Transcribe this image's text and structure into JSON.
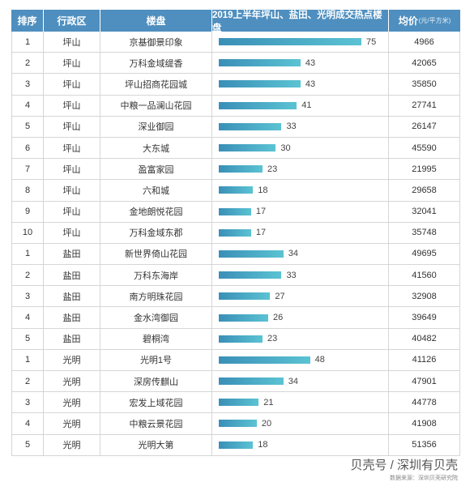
{
  "header": {
    "rank": "排序",
    "district": "行政区",
    "project": "楼盘",
    "chart_title": "2019上半年坪山、盐田、光明成交热点楼盘",
    "price": "均价",
    "price_unit": "(元/平方米)"
  },
  "chart_data": {
    "type": "table",
    "title": "2019上半年坪山、盐田、光明成交热点楼盘",
    "columns": [
      "排序",
      "行政区",
      "楼盘",
      "2019上半年坪山、盐田、光明成交热点楼盘",
      "均价(元/平方米)"
    ],
    "bar_max": 75,
    "rows": [
      {
        "rank": "1",
        "district": "坪山",
        "project": "京基御景印象",
        "value": 75,
        "price": "4966"
      },
      {
        "rank": "2",
        "district": "坪山",
        "project": "万科金域缇香",
        "value": 43,
        "price": "42065"
      },
      {
        "rank": "3",
        "district": "坪山",
        "project": "坪山招商花园城",
        "value": 43,
        "price": "35850"
      },
      {
        "rank": "4",
        "district": "坪山",
        "project": "中粮一品澜山花园",
        "value": 41,
        "price": "27741"
      },
      {
        "rank": "5",
        "district": "坪山",
        "project": "深业御园",
        "value": 33,
        "price": "26147"
      },
      {
        "rank": "6",
        "district": "坪山",
        "project": "大东城",
        "value": 30,
        "price": "45590"
      },
      {
        "rank": "7",
        "district": "坪山",
        "project": "盈富家园",
        "value": 23,
        "price": "21995"
      },
      {
        "rank": "8",
        "district": "坪山",
        "project": "六和城",
        "value": 18,
        "price": "29658"
      },
      {
        "rank": "9",
        "district": "坪山",
        "project": "金地朗悦花园",
        "value": 17,
        "price": "32041"
      },
      {
        "rank": "10",
        "district": "坪山",
        "project": "万科金域东郡",
        "value": 17,
        "price": "35748"
      },
      {
        "rank": "1",
        "district": "盐田",
        "project": "新世界倚山花园",
        "value": 34,
        "price": "49695"
      },
      {
        "rank": "2",
        "district": "盐田",
        "project": "万科东海岸",
        "value": 33,
        "price": "41560"
      },
      {
        "rank": "3",
        "district": "盐田",
        "project": "南方明珠花园",
        "value": 27,
        "price": "32908"
      },
      {
        "rank": "4",
        "district": "盐田",
        "project": "金水湾御园",
        "value": 26,
        "price": "39649"
      },
      {
        "rank": "5",
        "district": "盐田",
        "project": "碧桐湾",
        "value": 23,
        "price": "40482"
      },
      {
        "rank": "1",
        "district": "光明",
        "project": "光明1号",
        "value": 48,
        "price": "41126"
      },
      {
        "rank": "2",
        "district": "光明",
        "project": "深房传麒山",
        "value": 34,
        "price": "47901"
      },
      {
        "rank": "3",
        "district": "光明",
        "project": "宏发上域花园",
        "value": 21,
        "price": "44778"
      },
      {
        "rank": "4",
        "district": "光明",
        "project": "中粮云景花园",
        "value": 20,
        "price": "41908"
      },
      {
        "rank": "5",
        "district": "光明",
        "project": "光明大第",
        "value": 18,
        "price": "51356"
      }
    ]
  },
  "watermark": {
    "main": "贝壳号 / 深圳有贝壳",
    "sub": "数据来源：深圳贝壳研究院"
  },
  "colors": {
    "header_bg": "#4e8fbf",
    "bar_start": "#3a8fb7",
    "bar_end": "#5bc3d3"
  }
}
